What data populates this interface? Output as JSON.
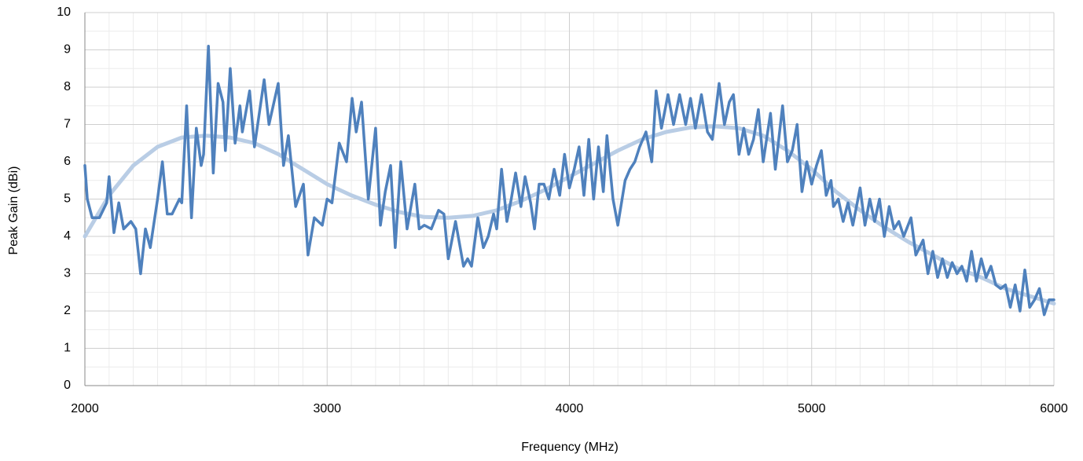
{
  "chart_data": {
    "type": "line",
    "x_label": "Frequency (MHz)",
    "y_label": "Peak Gain (dBi)",
    "xlim": [
      2000,
      6000
    ],
    "xticks": [
      2000,
      3000,
      4000,
      5000,
      6000
    ],
    "ylim": [
      0,
      10
    ],
    "yticks": [
      0,
      1,
      2,
      3,
      4,
      5,
      6,
      7,
      8,
      9,
      10
    ],
    "grid": true,
    "minor_grid": true,
    "series": [
      {
        "color": "#4f81bd",
        "x": [
          2000,
          2010,
          2030,
          2060,
          2090,
          2100,
          2120,
          2140,
          2160,
          2190,
          2210,
          2230,
          2250,
          2270,
          2300,
          2320,
          2340,
          2360,
          2390,
          2400,
          2420,
          2440,
          2460,
          2480,
          2490,
          2510,
          2530,
          2550,
          2570,
          2580,
          2600,
          2620,
          2640,
          2650,
          2680,
          2700,
          2740,
          2760,
          2798,
          2820,
          2840,
          2870,
          2902,
          2921,
          2947,
          2980,
          3000,
          3020,
          3050,
          3080,
          3103,
          3120,
          3142,
          3170,
          3200,
          3220,
          3240,
          3262,
          3281,
          3304,
          3330,
          3362,
          3380,
          3401,
          3430,
          3460,
          3482,
          3500,
          3530,
          3563,
          3580,
          3596,
          3622,
          3645,
          3665,
          3687,
          3700,
          3720,
          3742,
          3760,
          3778,
          3800,
          3817,
          3840,
          3856,
          3875,
          3895,
          3915,
          3937,
          3960,
          3980,
          4000,
          4020,
          4040,
          4060,
          4080,
          4100,
          4120,
          4140,
          4155,
          4180,
          4200,
          4230,
          4250,
          4270,
          4290,
          4316,
          4340,
          4358,
          4380,
          4407,
          4430,
          4455,
          4480,
          4500,
          4520,
          4545,
          4570,
          4590,
          4618,
          4640,
          4660,
          4677,
          4700,
          4720,
          4740,
          4760,
          4780,
          4800,
          4830,
          4850,
          4880,
          4900,
          4920,
          4940,
          4960,
          4980,
          5000,
          5020,
          5040,
          5060,
          5080,
          5090,
          5110,
          5130,
          5150,
          5170,
          5200,
          5220,
          5240,
          5260,
          5280,
          5300,
          5320,
          5340,
          5360,
          5380,
          5410,
          5430,
          5460,
          5480,
          5500,
          5520,
          5540,
          5560,
          5580,
          5600,
          5620,
          5640,
          5660,
          5680,
          5700,
          5720,
          5740,
          5760,
          5780,
          5800,
          5820,
          5840,
          5860,
          5880,
          5900,
          5920,
          5940,
          5960,
          5980,
          6000
        ],
        "values": [
          5.9,
          5.0,
          4.5,
          4.5,
          4.9,
          5.6,
          4.1,
          4.9,
          4.2,
          4.4,
          4.2,
          3.0,
          4.2,
          3.7,
          5.0,
          6.0,
          4.6,
          4.6,
          5.0,
          4.9,
          7.5,
          4.5,
          6.9,
          5.9,
          6.2,
          9.1,
          5.7,
          8.1,
          7.6,
          6.3,
          8.5,
          6.5,
          7.5,
          6.8,
          7.9,
          6.4,
          8.2,
          7.0,
          8.1,
          5.9,
          6.7,
          4.8,
          5.4,
          3.5,
          4.5,
          4.3,
          5.0,
          4.9,
          6.5,
          6.0,
          7.7,
          6.8,
          7.6,
          5.0,
          6.9,
          4.3,
          5.2,
          5.9,
          3.7,
          6.0,
          4.2,
          5.4,
          4.2,
          4.3,
          4.2,
          4.7,
          4.6,
          3.4,
          4.4,
          3.2,
          3.4,
          3.2,
          4.5,
          3.7,
          4.0,
          4.6,
          4.2,
          5.8,
          4.4,
          5.0,
          5.7,
          4.8,
          5.6,
          4.9,
          4.2,
          5.4,
          5.4,
          5.0,
          5.8,
          5.1,
          6.2,
          5.3,
          5.8,
          6.4,
          5.1,
          6.6,
          5.0,
          6.4,
          5.2,
          6.7,
          5.0,
          4.3,
          5.5,
          5.8,
          6.0,
          6.4,
          6.8,
          6.0,
          7.9,
          6.9,
          7.8,
          7.0,
          7.8,
          7.0,
          7.7,
          6.9,
          7.8,
          6.8,
          6.6,
          8.1,
          7.0,
          7.6,
          7.8,
          6.2,
          6.9,
          6.2,
          6.6,
          7.4,
          6.0,
          7.3,
          5.8,
          7.5,
          6.0,
          6.3,
          7.0,
          5.2,
          6.0,
          5.4,
          5.9,
          6.3,
          5.1,
          5.5,
          4.8,
          5.0,
          4.4,
          4.9,
          4.3,
          5.3,
          4.3,
          5.0,
          4.4,
          5.0,
          4.0,
          4.8,
          4.2,
          4.4,
          4.0,
          4.5,
          3.5,
          3.9,
          3.0,
          3.6,
          2.9,
          3.4,
          2.9,
          3.3,
          3.0,
          3.2,
          2.8,
          3.6,
          2.8,
          3.4,
          2.9,
          3.2,
          2.7,
          2.6,
          2.7,
          2.1,
          2.7,
          2.0,
          3.1,
          2.1,
          2.3,
          2.6,
          1.9,
          2.3,
          2.3
        ]
      },
      {
        "color": "#b9cde5",
        "x": [
          2000,
          2100,
          2200,
          2300,
          2400,
          2500,
          2600,
          2700,
          2800,
          2900,
          3000,
          3100,
          3200,
          3300,
          3400,
          3500,
          3600,
          3700,
          3800,
          3900,
          4000,
          4100,
          4200,
          4300,
          4400,
          4500,
          4600,
          4700,
          4800,
          4900,
          5000,
          5100,
          5200,
          5300,
          5400,
          5500,
          5600,
          5700,
          5800,
          5900,
          6000
        ],
        "values": [
          4.0,
          5.1,
          5.9,
          6.4,
          6.65,
          6.7,
          6.65,
          6.5,
          6.2,
          5.8,
          5.4,
          5.1,
          4.85,
          4.65,
          4.52,
          4.5,
          4.55,
          4.7,
          4.95,
          5.25,
          5.6,
          5.95,
          6.3,
          6.6,
          6.8,
          6.92,
          6.95,
          6.9,
          6.7,
          6.3,
          5.8,
          5.2,
          4.7,
          4.25,
          3.85,
          3.5,
          3.15,
          2.9,
          2.6,
          2.4,
          2.2
        ]
      }
    ]
  }
}
